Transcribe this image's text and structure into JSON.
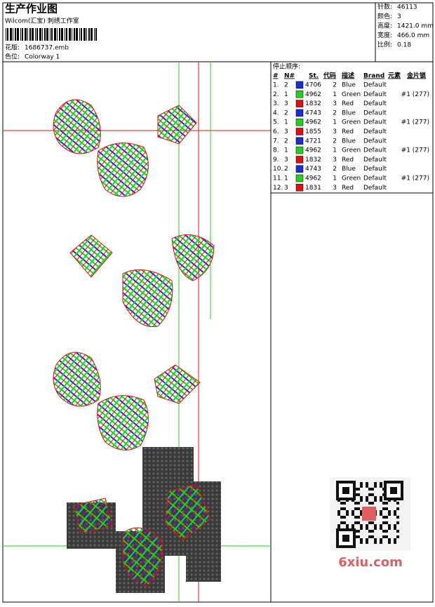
{
  "header": {
    "title": "生产作业图",
    "subtitle": "Wilcom(汇宝) 刺绣工作室",
    "design_label": "花版:",
    "design": "1686737.emb",
    "colorway_label": "色位:",
    "colorway": "Colorway 1"
  },
  "info": [
    {
      "label": "针数:",
      "value": "46113"
    },
    {
      "label": "颜色:",
      "value": "3"
    },
    {
      "label": "高度:",
      "value": "1421.0 mm"
    },
    {
      "label": "宽度:",
      "value": "466.0 mm"
    },
    {
      "label": "比例:",
      "value": "0.18"
    }
  ],
  "table": {
    "title": "停止顺序:",
    "columns": [
      "#",
      "N#",
      "St.",
      "代码",
      "描述",
      "Brand",
      "元素",
      "金片锁"
    ],
    "rows": [
      {
        "no": "1.",
        "needle": "2",
        "color": "#1a2fd0",
        "st": "4706",
        "code": "2",
        "desc": "Blue",
        "brand": "Default",
        "sequin": ""
      },
      {
        "no": "2.",
        "needle": "1",
        "color": "#22d022",
        "st": "4962",
        "code": "1",
        "desc": "Green",
        "brand": "Default",
        "sequin": "#1 (277)"
      },
      {
        "no": "3.",
        "needle": "3",
        "color": "#e01010",
        "st": "1832",
        "code": "3",
        "desc": "Red",
        "brand": "Default",
        "sequin": ""
      },
      {
        "no": "4.",
        "needle": "2",
        "color": "#1a2fd0",
        "st": "4743",
        "code": "2",
        "desc": "Blue",
        "brand": "Default",
        "sequin": ""
      },
      {
        "no": "5.",
        "needle": "1",
        "color": "#22d022",
        "st": "4962",
        "code": "1",
        "desc": "Green",
        "brand": "Default",
        "sequin": "#1 (277)"
      },
      {
        "no": "6.",
        "needle": "3",
        "color": "#e01010",
        "st": "1855",
        "code": "3",
        "desc": "Red",
        "brand": "Default",
        "sequin": ""
      },
      {
        "no": "7.",
        "needle": "2",
        "color": "#1a2fd0",
        "st": "4721",
        "code": "2",
        "desc": "Blue",
        "brand": "Default",
        "sequin": ""
      },
      {
        "no": "8.",
        "needle": "1",
        "color": "#22d022",
        "st": "4962",
        "code": "1",
        "desc": "Green",
        "brand": "Default",
        "sequin": "#1 (277)"
      },
      {
        "no": "9.",
        "needle": "3",
        "color": "#e01010",
        "st": "1832",
        "code": "3",
        "desc": "Red",
        "brand": "Default",
        "sequin": ""
      },
      {
        "no": "10.",
        "needle": "2",
        "color": "#1a2fd0",
        "st": "4743",
        "code": "2",
        "desc": "Blue",
        "brand": "Default",
        "sequin": ""
      },
      {
        "no": "11.",
        "needle": "1",
        "color": "#22d022",
        "st": "4962",
        "code": "1",
        "desc": "Green",
        "brand": "Default",
        "sequin": "#1 (277)"
      },
      {
        "no": "12.",
        "needle": "3",
        "color": "#e01010",
        "st": "1831",
        "code": "3",
        "desc": "Red",
        "brand": "Default",
        "sequin": ""
      }
    ]
  },
  "watermark": "6xiu.com"
}
